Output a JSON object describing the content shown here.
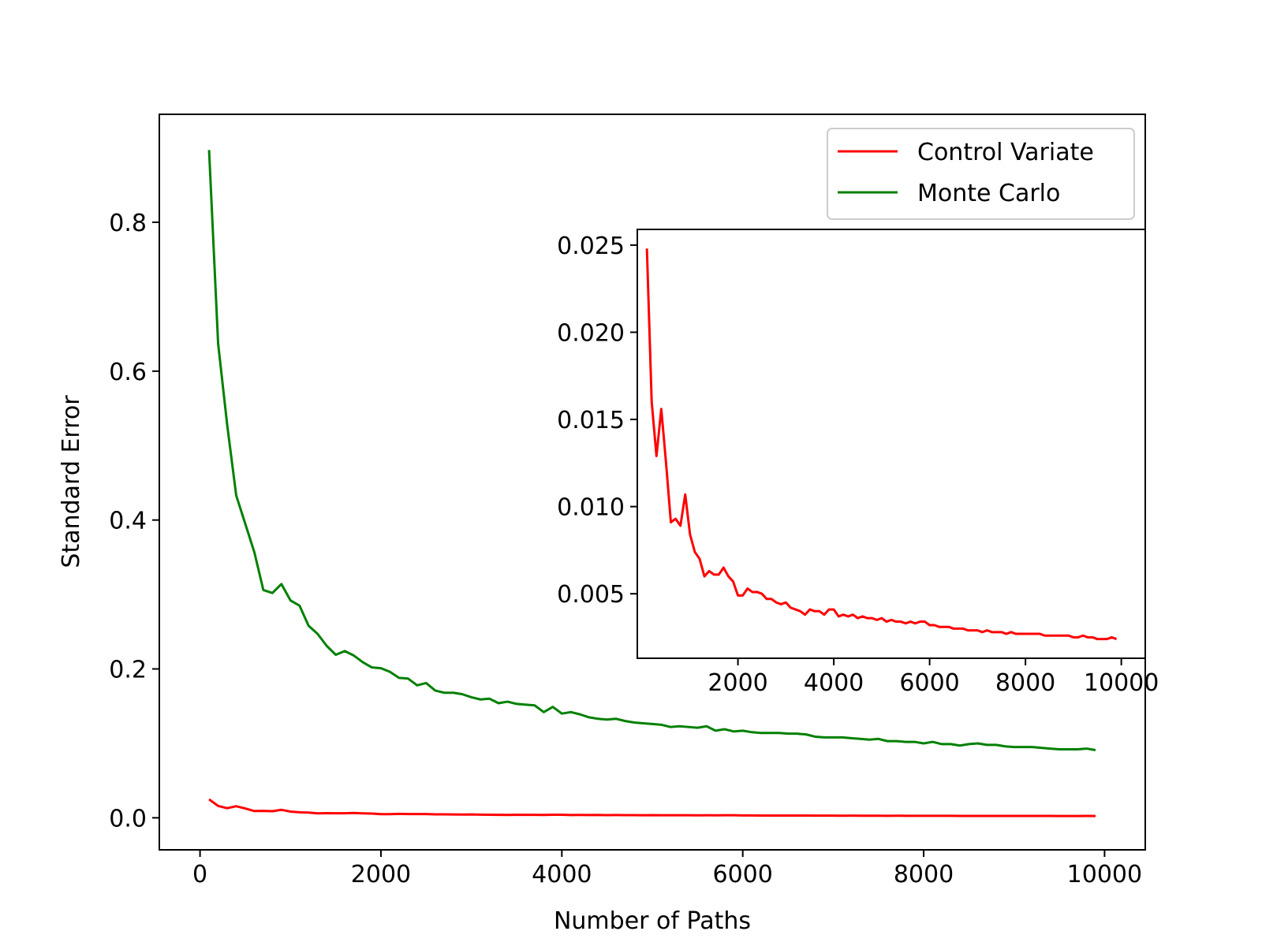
{
  "chart_data": [
    {
      "type": "line",
      "title": "",
      "xlabel": "Number of Paths",
      "ylabel": "Standard Error",
      "xlim": [
        -450,
        10450
      ],
      "ylim": [
        -0.043,
        0.945
      ],
      "xticks": [
        0,
        2000,
        4000,
        6000,
        8000,
        10000
      ],
      "xtick_labels": [
        "0",
        "2000",
        "4000",
        "6000",
        "8000",
        "10000"
      ],
      "yticks": [
        0.0,
        0.2,
        0.4,
        0.6,
        0.8
      ],
      "ytick_labels": [
        "0.0",
        "0.2",
        "0.4",
        "0.6",
        "0.8"
      ],
      "grid": false,
      "legend": {
        "location": "upper right",
        "entries": [
          "Control Variate",
          "Monte Carlo"
        ]
      },
      "x": [
        100,
        200,
        300,
        400,
        500,
        600,
        700,
        800,
        900,
        1000,
        1100,
        1200,
        1300,
        1400,
        1500,
        1600,
        1700,
        1800,
        1900,
        2000,
        2100,
        2200,
        2300,
        2400,
        2500,
        2600,
        2700,
        2800,
        2900,
        3000,
        3100,
        3200,
        3300,
        3400,
        3500,
        3600,
        3700,
        3800,
        3900,
        4000,
        4100,
        4200,
        4300,
        4400,
        4500,
        4600,
        4700,
        4800,
        4900,
        5000,
        5100,
        5200,
        5300,
        5400,
        5500,
        5600,
        5700,
        5800,
        5900,
        6000,
        6100,
        6200,
        6300,
        6400,
        6500,
        6600,
        6700,
        6800,
        6900,
        7000,
        7100,
        7200,
        7300,
        7400,
        7500,
        7600,
        7700,
        7800,
        7900,
        8000,
        8100,
        8200,
        8300,
        8400,
        8500,
        8600,
        8700,
        8800,
        8900,
        9000,
        9100,
        9200,
        9300,
        9400,
        9500,
        9600,
        9700,
        9800,
        9900
      ],
      "series": [
        {
          "name": "Control Variate",
          "color": "#ff0000",
          "values": [
            0.0248,
            0.016,
            0.0129,
            0.0156,
            0.0125,
            0.0091,
            0.0093,
            0.0089,
            0.0107,
            0.0084,
            0.0074,
            0.007,
            0.006,
            0.0063,
            0.0061,
            0.0061,
            0.0065,
            0.006,
            0.0057,
            0.0049,
            0.0049,
            0.0053,
            0.0051,
            0.0051,
            0.005,
            0.0047,
            0.0047,
            0.0045,
            0.0044,
            0.0045,
            0.0042,
            0.0041,
            0.004,
            0.0038,
            0.0041,
            0.004,
            0.004,
            0.0038,
            0.0041,
            0.0041,
            0.0037,
            0.0038,
            0.0037,
            0.0038,
            0.0036,
            0.0037,
            0.0036,
            0.0036,
            0.0035,
            0.0036,
            0.0034,
            0.0035,
            0.0034,
            0.0034,
            0.0033,
            0.0034,
            0.0033,
            0.0034,
            0.0034,
            0.0032,
            0.0032,
            0.0031,
            0.0031,
            0.0031,
            0.003,
            0.003,
            0.003,
            0.0029,
            0.0029,
            0.0029,
            0.0028,
            0.0029,
            0.0028,
            0.0028,
            0.0028,
            0.0027,
            0.0028,
            0.0027,
            0.0027,
            0.0027,
            0.0027,
            0.0027,
            0.0027,
            0.0026,
            0.0026,
            0.0026,
            0.0026,
            0.0026,
            0.0026,
            0.0025,
            0.0025,
            0.0026,
            0.0025,
            0.0025,
            0.0024,
            0.0024,
            0.0024,
            0.0025,
            0.0024
          ]
        },
        {
          "name": "Monte Carlo",
          "color": "#008000",
          "values": [
            0.897,
            0.637,
            0.528,
            0.433,
            0.395,
            0.357,
            0.306,
            0.302,
            0.314,
            0.292,
            0.285,
            0.258,
            0.247,
            0.231,
            0.219,
            0.224,
            0.218,
            0.209,
            0.202,
            0.201,
            0.196,
            0.188,
            0.187,
            0.178,
            0.181,
            0.171,
            0.168,
            0.168,
            0.166,
            0.162,
            0.159,
            0.16,
            0.154,
            0.156,
            0.153,
            0.152,
            0.151,
            0.142,
            0.149,
            0.14,
            0.142,
            0.139,
            0.135,
            0.133,
            0.132,
            0.133,
            0.13,
            0.128,
            0.127,
            0.126,
            0.125,
            0.122,
            0.123,
            0.122,
            0.121,
            0.123,
            0.117,
            0.119,
            0.116,
            0.117,
            0.115,
            0.114,
            0.114,
            0.114,
            0.113,
            0.113,
            0.112,
            0.109,
            0.108,
            0.108,
            0.108,
            0.107,
            0.106,
            0.105,
            0.106,
            0.103,
            0.103,
            0.102,
            0.102,
            0.1,
            0.102,
            0.099,
            0.099,
            0.097,
            0.099,
            0.1,
            0.098,
            0.098,
            0.096,
            0.095,
            0.095,
            0.095,
            0.094,
            0.093,
            0.092,
            0.092,
            0.092,
            0.093,
            0.091
          ]
        }
      ]
    },
    {
      "type": "line",
      "title": "",
      "xlabel": "",
      "ylabel": "",
      "xlim": [
        -100,
        10500
      ],
      "ylim": [
        0.0013,
        0.0259
      ],
      "xticks": [
        2000,
        4000,
        6000,
        8000,
        10000
      ],
      "xtick_labels": [
        "2000",
        "4000",
        "6000",
        "8000",
        "10000"
      ],
      "yticks": [
        0.005,
        0.01,
        0.015,
        0.02,
        0.025
      ],
      "ytick_labels": [
        "0.005",
        "0.010",
        "0.015",
        "0.020",
        "0.025"
      ],
      "grid": false,
      "series_ref": "Control Variate"
    }
  ]
}
